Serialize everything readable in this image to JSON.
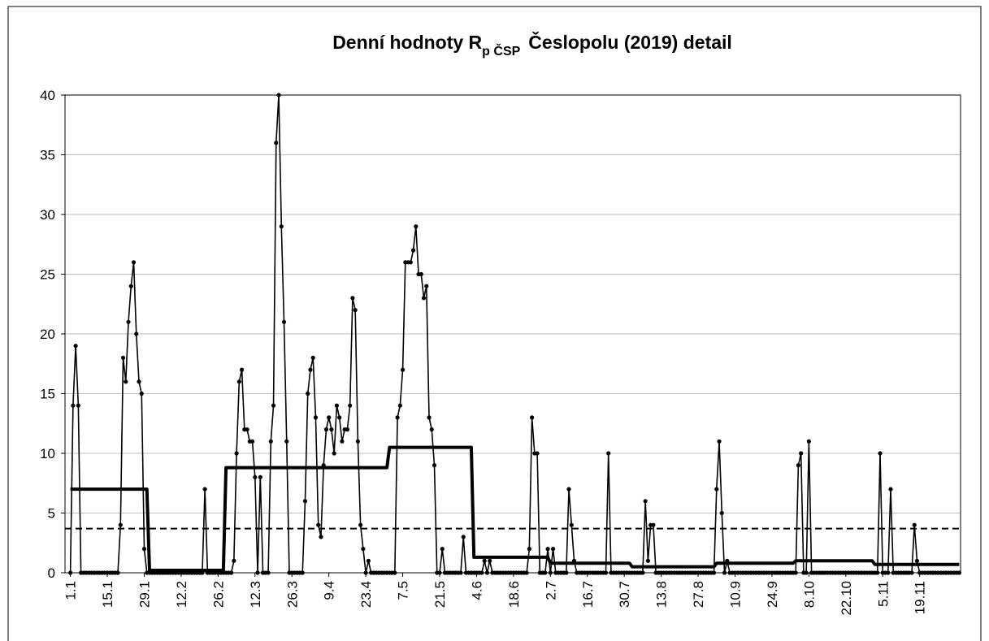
{
  "chart_data": {
    "type": "line",
    "title": "Denní hodnoty R",
    "title_subscript": "p ČSP",
    "title_rest": "Česlopolu (2019) detail",
    "categories": [
      "1.1",
      null,
      null,
      null,
      null,
      null,
      null,
      null,
      null,
      null,
      null,
      null,
      null,
      null,
      "15.1",
      null,
      null,
      null,
      null,
      null,
      null,
      null,
      null,
      null,
      null,
      null,
      null,
      null,
      "29.1",
      null,
      null,
      null,
      null,
      null,
      null,
      null,
      null,
      null,
      null,
      null,
      null,
      null,
      "12.2",
      null,
      null,
      null,
      null,
      null,
      null,
      null,
      null,
      null,
      null,
      null,
      null,
      null,
      "26.2",
      null,
      null,
      null,
      null,
      null,
      null,
      null,
      null,
      null,
      null,
      null,
      null,
      null,
      "12.3",
      null,
      null,
      null,
      null,
      null,
      null,
      null,
      null,
      null,
      null,
      null,
      null,
      null,
      "26.3",
      null,
      null,
      null,
      null,
      null,
      null,
      null,
      null,
      null,
      null,
      null,
      null,
      null,
      "9.4",
      null,
      null,
      null,
      null,
      null,
      null,
      null,
      null,
      null,
      null,
      null,
      null,
      null,
      "23.4",
      null,
      null,
      null,
      null,
      null,
      null,
      null,
      null,
      null,
      null,
      null,
      null,
      null,
      "7.5",
      null,
      null,
      null,
      null,
      null,
      null,
      null,
      null,
      null,
      null,
      null,
      null,
      null,
      "21.5",
      null,
      null,
      null,
      null,
      null,
      null,
      null,
      null,
      null,
      null,
      null,
      null,
      null,
      "4.6",
      null,
      null,
      null,
      null,
      null,
      null,
      null,
      null,
      null,
      null,
      null,
      null,
      null,
      "18.6",
      null,
      null,
      null,
      null,
      null,
      null,
      null,
      null,
      null,
      null,
      null,
      null,
      null,
      "2.7",
      null,
      null,
      null,
      null,
      null,
      null,
      null,
      null,
      null,
      null,
      null,
      null,
      null,
      "16.7",
      null,
      null,
      null,
      null,
      null,
      null,
      null,
      null,
      null,
      null,
      null,
      null,
      null,
      "30.7",
      null,
      null,
      null,
      null,
      null,
      null,
      null,
      null,
      null,
      null,
      null,
      null,
      null,
      "13.8",
      null,
      null,
      null,
      null,
      null,
      null,
      null,
      null,
      null,
      null,
      null,
      null,
      null,
      "27.8",
      null,
      null,
      null,
      null,
      null,
      null,
      null,
      null,
      null,
      null,
      null,
      null,
      null,
      "10.9",
      null,
      null,
      null,
      null,
      null,
      null,
      null,
      null,
      null,
      null,
      null,
      null,
      null,
      "24.9",
      null,
      null,
      null,
      null,
      null,
      null,
      null,
      null,
      null,
      null,
      null,
      null,
      null,
      "8.10",
      null,
      null,
      null,
      null,
      null,
      null,
      null,
      null,
      null,
      null,
      null,
      null,
      null,
      "22.10",
      null,
      null,
      null,
      null,
      null,
      null,
      null,
      null,
      null,
      null,
      null,
      null,
      null,
      "5.11",
      null,
      null,
      null,
      null,
      null,
      null,
      null,
      null,
      null,
      null,
      null,
      null,
      null,
      "19.11",
      null,
      null,
      null,
      null,
      null,
      null,
      null,
      null,
      null,
      null,
      null,
      null,
      null,
      null,
      null
    ],
    "series": [
      {
        "color": "#000000",
        "style": "markers",
        "values": [
          0,
          14,
          19,
          14,
          0,
          0,
          0,
          0,
          0,
          0,
          0,
          0,
          0,
          0,
          0,
          0,
          0,
          0,
          0,
          4,
          18,
          16,
          21,
          24,
          26,
          20,
          16,
          15,
          2,
          0,
          0,
          0,
          0,
          0,
          0,
          0,
          0,
          0,
          0,
          0,
          0,
          0,
          0,
          0,
          0,
          0,
          0,
          0,
          0,
          0,
          0,
          7,
          0,
          0,
          0,
          0,
          0,
          0,
          0,
          0,
          0,
          0,
          1,
          10,
          16,
          17,
          12,
          12,
          11,
          11,
          8,
          0,
          8,
          0,
          0,
          0,
          11,
          14,
          36,
          40,
          29,
          21,
          11,
          0,
          0,
          0,
          0,
          0,
          0,
          6,
          15,
          17,
          18,
          13,
          4,
          3,
          9,
          12,
          13,
          12,
          10,
          14,
          13,
          11,
          12,
          12,
          14,
          23,
          22,
          11,
          4,
          2,
          0,
          1,
          0,
          0,
          0,
          0,
          0,
          0,
          0,
          0,
          0,
          0,
          13,
          14,
          17,
          26,
          26,
          26,
          27,
          29,
          25,
          25,
          23,
          24,
          13,
          12,
          9,
          0,
          0,
          2,
          0,
          0,
          0,
          0,
          0,
          0,
          0,
          3,
          0,
          0,
          0,
          0,
          0,
          0,
          0,
          1,
          0,
          1,
          0,
          0,
          0,
          0,
          0,
          0,
          0,
          0,
          0,
          0,
          0,
          0,
          0,
          0,
          2,
          13,
          10,
          10,
          0,
          0,
          0,
          2,
          0,
          2,
          0,
          0,
          0,
          0,
          0,
          7,
          4,
          1,
          0,
          0,
          0,
          0,
          0,
          0,
          0,
          0,
          0,
          0,
          0,
          0,
          10,
          0,
          0,
          0,
          0,
          0,
          0,
          0,
          0,
          0,
          0,
          0,
          0,
          0,
          6,
          1,
          4,
          4,
          0,
          0,
          0,
          0,
          0,
          0,
          0,
          0,
          0,
          0,
          0,
          0,
          0,
          0,
          0,
          0,
          0,
          0,
          0,
          0,
          0,
          0,
          0,
          7,
          11,
          5,
          0,
          1,
          0,
          0,
          0,
          0,
          0,
          0,
          0,
          0,
          0,
          0,
          0,
          0,
          0,
          0,
          0,
          0,
          0,
          0,
          0,
          0,
          0,
          0,
          0,
          0,
          0,
          0,
          9,
          10,
          0,
          0,
          11,
          0,
          0,
          0,
          0,
          0,
          0,
          0,
          0,
          0,
          0,
          0,
          0,
          0,
          0,
          0,
          0,
          0,
          0,
          0,
          0,
          0,
          0,
          0,
          0,
          0,
          0,
          10,
          0,
          0,
          0,
          7,
          0,
          0,
          0,
          0,
          0,
          0,
          0,
          0,
          4,
          1,
          0,
          0,
          0,
          0,
          0,
          0,
          0,
          0,
          0,
          0,
          0,
          0,
          0,
          0,
          0,
          0
        ]
      },
      {
        "color": "#000000",
        "style": "thick",
        "values": [
          7,
          7,
          7,
          7,
          7,
          7,
          7,
          7,
          7,
          7,
          7,
          7,
          7,
          7,
          7,
          7,
          7,
          7,
          7,
          7,
          7,
          7,
          7,
          7,
          7,
          7,
          7,
          7,
          7,
          7,
          0.2,
          0.2,
          0.2,
          0.2,
          0.2,
          0.2,
          0.2,
          0.2,
          0.2,
          0.2,
          0.2,
          0.2,
          0.2,
          0.2,
          0.2,
          0.2,
          0.2,
          0.2,
          0.2,
          0.2,
          0.2,
          0.2,
          0.2,
          0.2,
          0.2,
          0.2,
          0.2,
          0.2,
          0.2,
          8.8,
          8.8,
          8.8,
          8.8,
          8.8,
          8.8,
          8.8,
          8.8,
          8.8,
          8.8,
          8.8,
          8.8,
          8.8,
          8.8,
          8.8,
          8.8,
          8.8,
          8.8,
          8.8,
          8.8,
          8.8,
          8.8,
          8.8,
          8.8,
          8.8,
          8.8,
          8.8,
          8.8,
          8.8,
          8.8,
          8.8,
          8.8,
          8.8,
          8.8,
          8.8,
          8.8,
          8.8,
          8.8,
          8.8,
          8.8,
          8.8,
          8.8,
          8.8,
          8.8,
          8.8,
          8.8,
          8.8,
          8.8,
          8.8,
          8.8,
          8.8,
          8.8,
          8.8,
          8.8,
          8.8,
          8.8,
          8.8,
          8.8,
          8.8,
          8.8,
          8.8,
          8.8,
          10.5,
          10.5,
          10.5,
          10.5,
          10.5,
          10.5,
          10.5,
          10.5,
          10.5,
          10.5,
          10.5,
          10.5,
          10.5,
          10.5,
          10.5,
          10.5,
          10.5,
          10.5,
          10.5,
          10.5,
          10.5,
          10.5,
          10.5,
          10.5,
          10.5,
          10.5,
          10.5,
          10.5,
          10.5,
          10.5,
          10.5,
          10.5,
          1.3,
          1.3,
          1.3,
          1.3,
          1.3,
          1.3,
          1.3,
          1.3,
          1.3,
          1.3,
          1.3,
          1.3,
          1.3,
          1.3,
          1.3,
          1.3,
          1.3,
          1.3,
          1.3,
          1.3,
          1.3,
          1.3,
          1.3,
          1.3,
          1.3,
          1.3,
          1.3,
          1.3,
          1.3,
          0.8,
          0.8,
          0.8,
          0.8,
          0.8,
          0.8,
          0.8,
          0.8,
          0.8,
          0.8,
          0.8,
          0.8,
          0.8,
          0.8,
          0.8,
          0.8,
          0.8,
          0.8,
          0.8,
          0.8,
          0.8,
          0.8,
          0.8,
          0.8,
          0.8,
          0.8,
          0.8,
          0.8,
          0.8,
          0.8,
          0.8,
          0.5,
          0.5,
          0.5,
          0.5,
          0.5,
          0.5,
          0.5,
          0.5,
          0.5,
          0.5,
          0.5,
          0.5,
          0.5,
          0.5,
          0.5,
          0.5,
          0.5,
          0.5,
          0.5,
          0.5,
          0.5,
          0.5,
          0.5,
          0.5,
          0.5,
          0.5,
          0.5,
          0.5,
          0.5,
          0.5,
          0.5,
          0.5,
          0.8,
          0.8,
          0.8,
          0.8,
          0.8,
          0.8,
          0.8,
          0.8,
          0.8,
          0.8,
          0.8,
          0.8,
          0.8,
          0.8,
          0.8,
          0.8,
          0.8,
          0.8,
          0.8,
          0.8,
          0.8,
          0.8,
          0.8,
          0.8,
          0.8,
          0.8,
          0.8,
          0.8,
          0.8,
          0.8,
          1,
          1,
          1,
          1,
          1,
          1,
          1,
          1,
          1,
          1,
          1,
          1,
          1,
          1,
          1,
          1,
          1,
          1,
          1,
          1,
          1,
          1,
          1,
          1,
          1,
          1,
          1,
          1,
          1,
          1,
          0.7,
          0.7,
          0.7,
          0.7,
          0.7,
          0.7,
          0.7,
          0.7,
          0.7,
          0.7,
          0.7,
          0.7,
          0.7,
          0.7,
          0.7,
          0.7,
          0.7,
          0.7,
          0.7,
          0.7,
          0.7,
          0.7,
          0.7,
          0.7,
          0.7,
          0.7,
          0.7,
          0.7,
          0.7,
          0.7,
          0.7,
          0.7,
          0.7
        ]
      }
    ],
    "reference_line": 3.7,
    "ylim": [
      0,
      40
    ],
    "yticks": [
      0,
      5,
      10,
      15,
      20,
      25,
      30,
      35,
      40
    ],
    "grid": true
  }
}
